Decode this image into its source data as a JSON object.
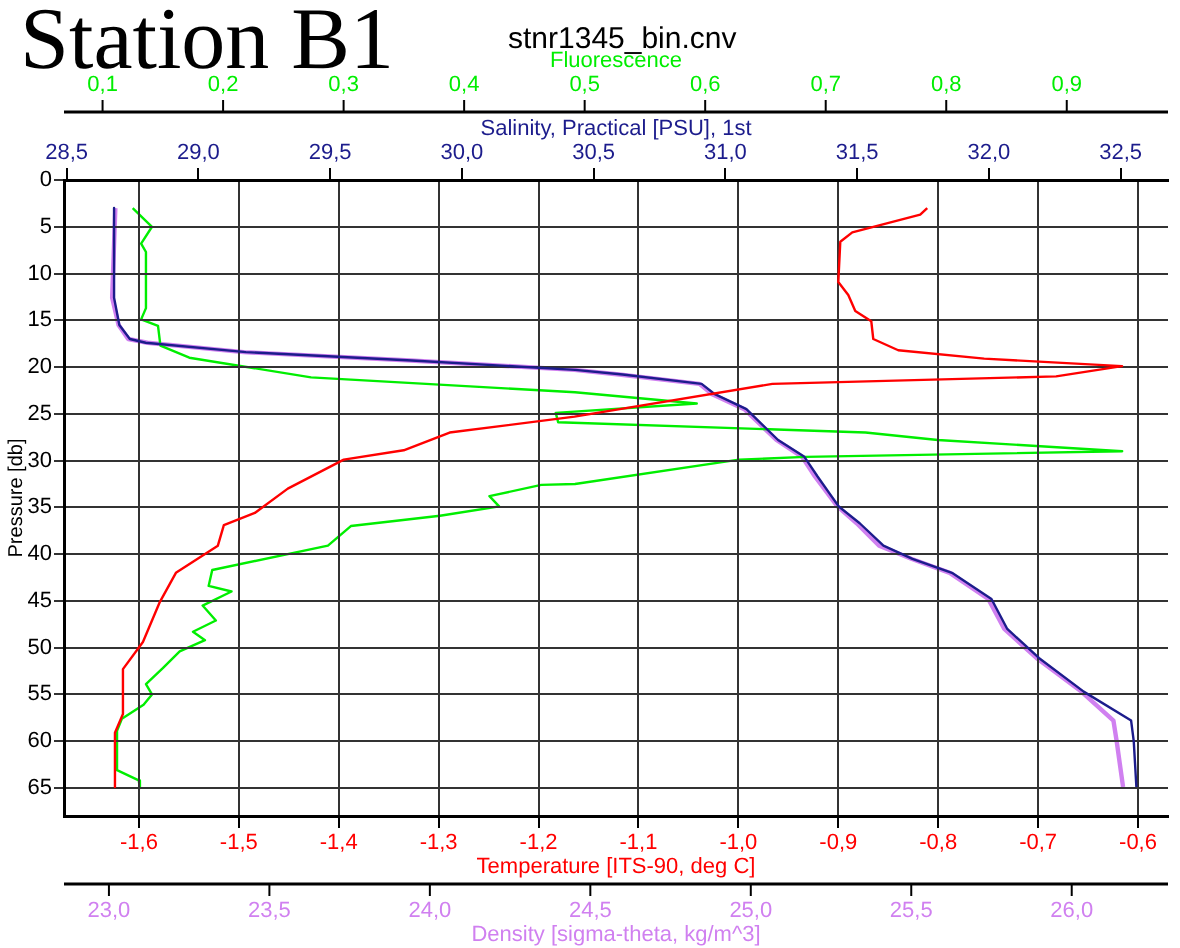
{
  "chart_data": [
    {
      "type": "line",
      "title": "Station B1",
      "subtitle": "stnr1345_bin.cnv",
      "xlabel": "Temperature [ITS-90, deg C]",
      "x2label": "Salinity, Practical [PSU], 1st",
      "ylabel": "Pressure [db]",
      "xlim": [
        -1.675,
        -0.57
      ],
      "xticks": [
        {
          "value": -1.6,
          "label": "-1,6"
        },
        {
          "value": -1.5,
          "label": "-1,5"
        },
        {
          "value": -1.4,
          "label": "-1,4"
        },
        {
          "value": -1.3,
          "label": "-1,3"
        },
        {
          "value": -1.2,
          "label": "-1,2"
        },
        {
          "value": -1.1,
          "label": "-1,1"
        },
        {
          "value": -1.0,
          "label": "-1,0"
        },
        {
          "value": -0.9,
          "label": "-0,9"
        },
        {
          "value": -0.8,
          "label": "-0,8"
        },
        {
          "value": -0.7,
          "label": "-0,7"
        },
        {
          "value": -0.6,
          "label": "-0,6"
        }
      ],
      "x2lim": [
        28.49,
        32.68
      ],
      "x2ticks": [
        {
          "value": 28.5,
          "label": "28,5"
        },
        {
          "value": 29.0,
          "label": "29,0"
        },
        {
          "value": 29.5,
          "label": "29,5"
        },
        {
          "value": 30.0,
          "label": "30,0"
        },
        {
          "value": 30.5,
          "label": "30,5"
        },
        {
          "value": 31.0,
          "label": "31,0"
        },
        {
          "value": 31.5,
          "label": "31,5"
        },
        {
          "value": 32.0,
          "label": "32,0"
        },
        {
          "value": 32.5,
          "label": "32,5"
        }
      ],
      "ylim": [
        68,
        0
      ],
      "yticks": [
        0,
        5,
        10,
        15,
        20,
        25,
        30,
        35,
        40,
        45,
        50,
        55,
        60,
        65
      ],
      "grid": true,
      "legend": false,
      "series": [
        {
          "color": "#ff0000",
          "x": [
            -0.811,
            -0.818,
            -0.886,
            -0.898,
            -0.9,
            -0.89,
            -0.883,
            -0.867,
            -0.865,
            -0.84,
            -0.754,
            -0.616,
            -0.682,
            -0.966,
            -1.164,
            -1.289,
            -1.335,
            -1.395,
            -1.451,
            -1.484,
            -1.515,
            -1.521,
            -1.563,
            -1.579,
            -1.596,
            -1.616,
            -1.616,
            -1.624,
            -1.624
          ],
          "values": [
            3.0,
            3.7,
            5.6,
            6.6,
            10.9,
            12.3,
            14.0,
            15.1,
            17.0,
            18.2,
            19.1,
            19.9,
            21.0,
            21.8,
            25.3,
            27.0,
            28.9,
            29.9,
            33.0,
            35.6,
            36.9,
            39.1,
            42.0,
            45.1,
            49.4,
            52.3,
            57.1,
            59.1,
            64.9
          ]
        },
        {
          "color": "#1c1c8c",
          "axis": "x2",
          "x": [
            28.68,
            28.68,
            28.7,
            28.74,
            28.8,
            29.18,
            29.81,
            30.43,
            30.61,
            30.91,
            30.96,
            31.08,
            31.2,
            31.3,
            31.35,
            31.43,
            31.51,
            31.6,
            31.71,
            31.86,
            32.01,
            32.07,
            32.19,
            32.36,
            32.54,
            32.55,
            32.56
          ],
          "values": [
            3.0,
            12.6,
            15.5,
            17.0,
            17.4,
            18.4,
            19.3,
            20.3,
            20.8,
            21.8,
            22.9,
            24.5,
            27.8,
            29.6,
            31.7,
            34.9,
            36.7,
            39.1,
            40.5,
            42.0,
            44.8,
            48.0,
            51.1,
            54.7,
            57.8,
            60.0,
            64.9
          ]
        }
      ]
    },
    {
      "type": "line",
      "xlabel": "Density [sigma-theta, kg/m^3]",
      "x2label": "Fluorescence",
      "tick_labels": "x",
      "xlim": [
        22.86,
        26.3
      ],
      "xticks": [
        {
          "value": 23.0,
          "label": "23,0"
        },
        {
          "value": 23.5,
          "label": "23,5"
        },
        {
          "value": 24.0,
          "label": "24,0"
        },
        {
          "value": 24.5,
          "label": "24,5"
        },
        {
          "value": 25.0,
          "label": "25,0"
        },
        {
          "value": 25.5,
          "label": "25,5"
        },
        {
          "value": 26.0,
          "label": "26,0"
        }
      ],
      "x2lim": [
        0.068,
        0.984
      ],
      "x2ticks": [
        {
          "value": 0.1,
          "label": "0,1"
        },
        {
          "value": 0.2,
          "label": "0,2"
        },
        {
          "value": 0.3,
          "label": "0,3"
        },
        {
          "value": 0.4,
          "label": "0,4"
        },
        {
          "value": 0.5,
          "label": "0,5"
        },
        {
          "value": 0.6,
          "label": "0,6"
        },
        {
          "value": 0.7,
          "label": "0,7"
        },
        {
          "value": 0.8,
          "label": "0,8"
        },
        {
          "value": 0.9,
          "label": "0,9"
        }
      ],
      "ylim": [
        68,
        0
      ],
      "yticks": [
        0,
        5,
        10,
        15,
        20,
        25,
        30,
        35,
        40,
        45,
        50,
        55,
        60,
        65
      ],
      "legend": false,
      "series": [
        {
          "color": "#00ee00",
          "axis": "x2",
          "x": [
            0.125,
            0.141,
            0.132,
            0.136,
            0.136,
            0.132,
            0.146,
            0.148,
            0.172,
            0.273,
            0.492,
            0.593,
            0.476,
            0.478,
            0.733,
            0.793,
            0.946,
            0.683,
            0.628,
            0.492,
            0.464,
            0.421,
            0.429,
            0.38,
            0.306,
            0.287,
            0.191,
            0.188,
            0.207,
            0.183,
            0.194,
            0.175,
            0.185,
            0.164,
            0.15,
            0.136,
            0.141,
            0.134,
            0.116,
            0.112,
            0.112,
            0.13,
            0.131
          ],
          "values": [
            3.0,
            5.0,
            6.8,
            7.7,
            13.7,
            14.9,
            15.6,
            17.7,
            19.0,
            21.1,
            22.7,
            23.9,
            24.9,
            25.9,
            27.0,
            27.8,
            29.0,
            29.6,
            29.9,
            32.5,
            32.6,
            33.8,
            34.9,
            35.9,
            37.0,
            39.1,
            41.7,
            43.4,
            44.0,
            45.5,
            47.1,
            48.3,
            49.2,
            50.4,
            52.2,
            53.9,
            55.0,
            56.1,
            57.6,
            58.9,
            63.1,
            64.2,
            65.0
          ]
        },
        {
          "color": "#d080f0",
          "x": [
            23.02,
            23.01,
            23.03,
            23.06,
            23.12,
            23.42,
            23.94,
            24.45,
            24.59,
            24.84,
            24.88,
            24.98,
            25.08,
            25.16,
            25.2,
            25.27,
            25.33,
            25.4,
            25.5,
            25.62,
            25.74,
            25.79,
            25.89,
            26.03,
            26.13,
            26.14,
            26.16
          ],
          "values": [
            3.0,
            12.6,
            15.5,
            17.0,
            17.4,
            18.4,
            19.3,
            20.3,
            20.8,
            21.8,
            22.9,
            24.5,
            27.8,
            29.6,
            31.7,
            34.9,
            36.7,
            39.1,
            40.5,
            42.0,
            44.8,
            48.0,
            51.1,
            54.7,
            57.8,
            60.0,
            64.9
          ]
        }
      ]
    }
  ]
}
